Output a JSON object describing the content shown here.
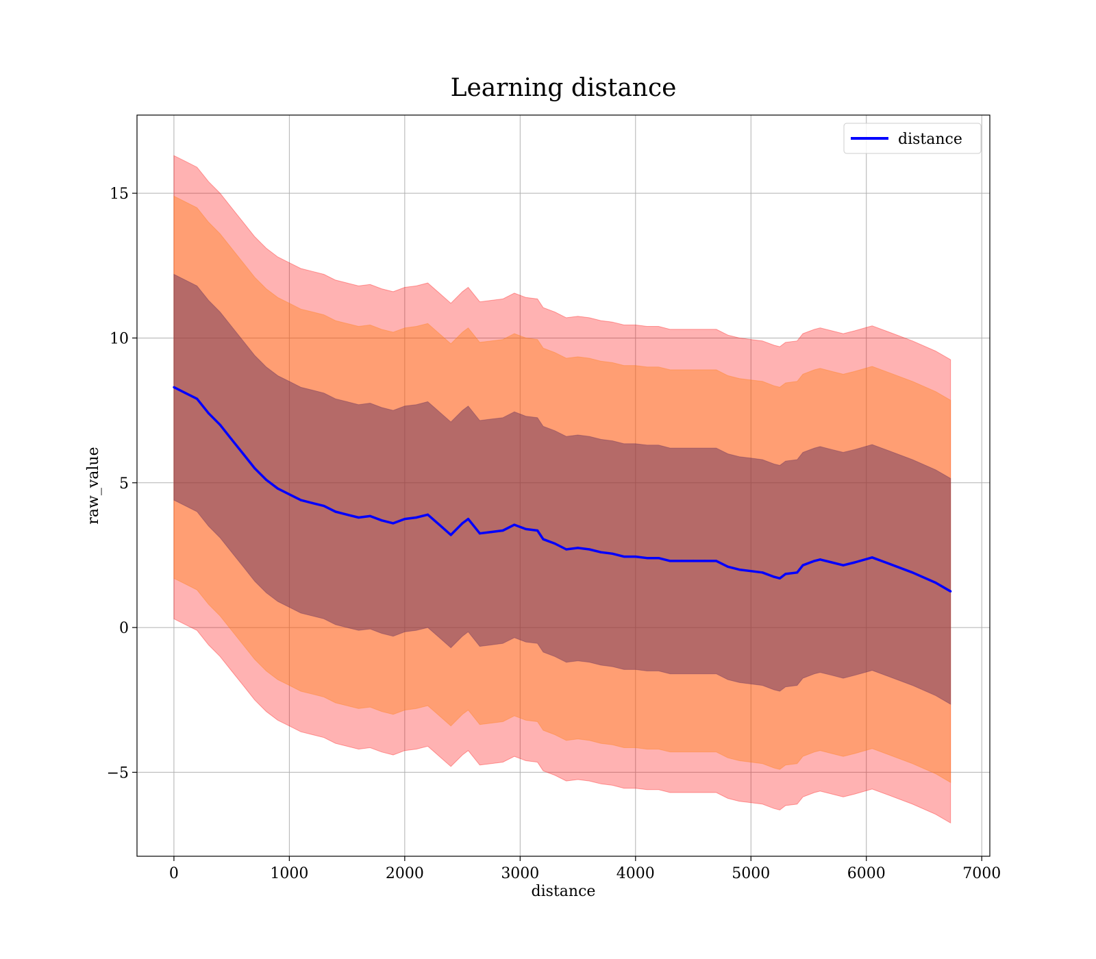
{
  "chart_data": {
    "type": "line",
    "title": "Learning distance",
    "xlabel": "distance",
    "ylabel": "raw_value",
    "xlim": [
      -320,
      7070
    ],
    "ylim": [
      -7.9,
      17.7
    ],
    "xticks": [
      0,
      1000,
      2000,
      3000,
      4000,
      5000,
      6000,
      7000
    ],
    "xtick_labels": [
      "0",
      "1000",
      "2000",
      "3000",
      "4000",
      "5000",
      "6000",
      "7000"
    ],
    "yticks": [
      -5,
      0,
      5,
      10,
      15
    ],
    "ytick_labels": [
      "−5",
      "0",
      "5",
      "10",
      "15"
    ],
    "grid": true,
    "legend": {
      "placement": "top-right",
      "entries": [
        {
          "label": "distance",
          "color": "#0000ff"
        }
      ]
    },
    "series": [
      {
        "name": "distance",
        "color": "#0000ff",
        "x": [
          0,
          100,
          200,
          300,
          400,
          500,
          600,
          700,
          800,
          900,
          1000,
          1100,
          1200,
          1300,
          1400,
          1500,
          1600,
          1700,
          1800,
          1900,
          2000,
          2100,
          2200,
          2300,
          2400,
          2500,
          2550,
          2650,
          2750,
          2850,
          2950,
          3050,
          3150,
          3200,
          3300,
          3400,
          3500,
          3600,
          3700,
          3800,
          3900,
          4000,
          4100,
          4200,
          4300,
          4400,
          4500,
          4600,
          4700,
          4800,
          4900,
          5000,
          5100,
          5200,
          5250,
          5300,
          5400,
          5450,
          5550,
          5600,
          5700,
          5800,
          5900,
          6050,
          6200,
          6400,
          6600,
          6730
        ],
        "y": [
          8.3,
          8.1,
          7.9,
          7.4,
          7.0,
          6.5,
          6.0,
          5.5,
          5.1,
          4.8,
          4.6,
          4.4,
          4.3,
          4.2,
          4.0,
          3.9,
          3.8,
          3.85,
          3.7,
          3.6,
          3.75,
          3.8,
          3.9,
          3.55,
          3.2,
          3.6,
          3.75,
          3.25,
          3.3,
          3.35,
          3.55,
          3.4,
          3.35,
          3.05,
          2.9,
          2.7,
          2.75,
          2.7,
          2.6,
          2.55,
          2.45,
          2.45,
          2.4,
          2.4,
          2.3,
          2.3,
          2.3,
          2.3,
          2.3,
          2.1,
          2.0,
          1.95,
          1.9,
          1.75,
          1.7,
          1.85,
          1.9,
          2.15,
          2.3,
          2.35,
          2.25,
          2.15,
          2.25,
          2.42,
          2.2,
          1.9,
          1.55,
          1.25
        ]
      }
    ],
    "bands": [
      {
        "sigma": 3,
        "half_width_start": 8.0,
        "half_width_end": 8.0,
        "color": "#ff0000",
        "opacity": 0.3
      },
      {
        "sigma": 2,
        "half_width_start": 6.6,
        "half_width_end": 6.6,
        "color": "#ff7f0e",
        "opacity": 0.38
      },
      {
        "sigma": 1,
        "half_width_start": 3.9,
        "half_width_end": 3.9,
        "color": "#5b2a5b",
        "opacity": 0.45
      }
    ]
  }
}
